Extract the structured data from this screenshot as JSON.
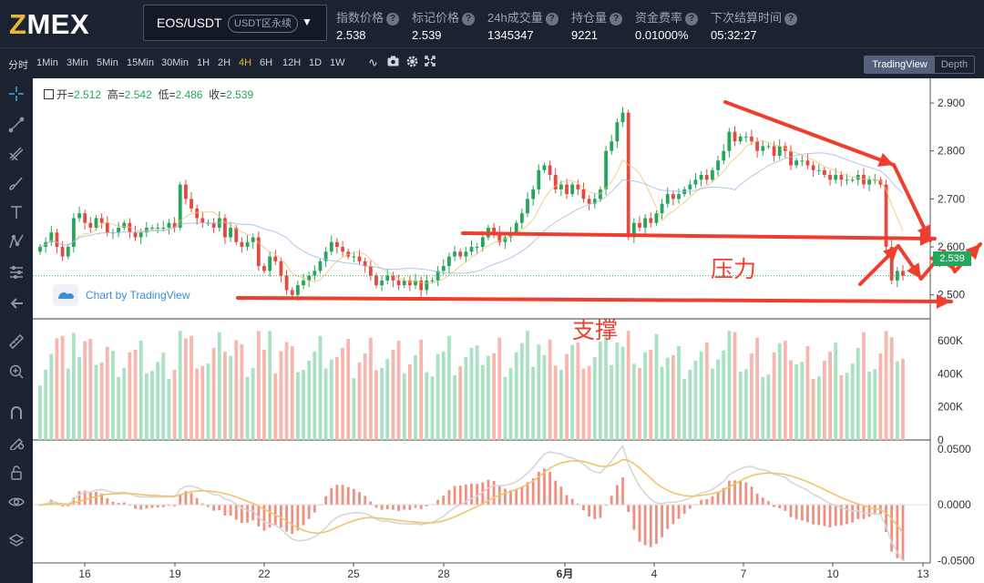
{
  "header": {
    "logo": {
      "z": "Z",
      "rest": "MEX"
    },
    "symbol": {
      "name": "EOS/USDT",
      "badge": "USDT区永续"
    },
    "stats": [
      {
        "label": "指数价格",
        "value": "2.538"
      },
      {
        "label": "标记价格",
        "value": "2.539"
      },
      {
        "label": "24h成交量",
        "value": "1345347"
      },
      {
        "label": "持仓量",
        "value": "9221"
      },
      {
        "label": "资金费率",
        "value": "0.01000%"
      },
      {
        "label": "下次结算时间",
        "value": "05:32:27"
      }
    ],
    "help_glyph": "?"
  },
  "toolbar": {
    "timeframes": [
      "分时",
      "1Min",
      "3Min",
      "5Min",
      "15Min",
      "30Min",
      "1H",
      "2H",
      "4H",
      "6H",
      "12H",
      "1D",
      "1W"
    ],
    "active_timeframe": "4H",
    "tools": [
      "indicator-icon",
      "camera-icon",
      "settings-icon",
      "fullscreen-icon"
    ],
    "views": {
      "tradingview": "TradingView",
      "depth": "Depth"
    }
  },
  "left_tools": [
    "crosshair-icon",
    "trendline-icon",
    "pitchfork-icon",
    "brush-icon",
    "text-icon",
    "pattern-icon",
    "measure-icon",
    "back-arrow-icon",
    "ruler-icon",
    "zoom-icon",
    "magnet-icon",
    "lock-drawing-icon",
    "lock-icon",
    "eye-icon",
    "layers-icon"
  ],
  "legend": {
    "open_label": "开=",
    "open": "2.512",
    "high_label": "高=",
    "high": "2.542",
    "low_label": "低=",
    "low": "2.486",
    "close_label": "收=",
    "close": "2.539"
  },
  "watermark": "Chart by TradingView",
  "annotations": {
    "resistance": "压力",
    "support": "支撑"
  },
  "last_price_tag": "2.539",
  "colors": {
    "up": "#26a65b",
    "down": "#e24b40",
    "up_volume": "#a9e2c2",
    "down_volume": "#f6b7ae",
    "annotation": "#f03e2e",
    "accent": "#e7b736",
    "header_bg": "#1b2230"
  },
  "chart_data": [
    {
      "type": "candlestick",
      "title": "",
      "x_ticks": [
        "16",
        "19",
        "22",
        "25",
        "28",
        "6月",
        "4",
        "7",
        "10",
        "13"
      ],
      "y_ticks": [
        "2.900",
        "2.800",
        "2.700",
        "2.600",
        "2.500"
      ],
      "ylim": [
        2.45,
        2.94
      ],
      "close_series": [
        2.6,
        2.61,
        2.63,
        2.6,
        2.58,
        2.6,
        2.66,
        2.67,
        2.65,
        2.64,
        2.66,
        2.65,
        2.63,
        2.63,
        2.64,
        2.65,
        2.63,
        2.62,
        2.63,
        2.64,
        2.64,
        2.64,
        2.64,
        2.65,
        2.64,
        2.73,
        2.7,
        2.68,
        2.66,
        2.65,
        2.65,
        2.64,
        2.66,
        2.62,
        2.64,
        2.61,
        2.6,
        2.61,
        2.62,
        2.56,
        2.55,
        2.58,
        2.57,
        2.54,
        2.51,
        2.5,
        2.52,
        2.53,
        2.54,
        2.55,
        2.57,
        2.59,
        2.61,
        2.6,
        2.59,
        2.58,
        2.58,
        2.57,
        2.56,
        2.54,
        2.52,
        2.53,
        2.54,
        2.53,
        2.52,
        2.53,
        2.52,
        2.53,
        2.51,
        2.53,
        2.53,
        2.55,
        2.56,
        2.58,
        2.59,
        2.58,
        2.59,
        2.6,
        2.6,
        2.62,
        2.64,
        2.63,
        2.61,
        2.62,
        2.63,
        2.65,
        2.67,
        2.7,
        2.72,
        2.76,
        2.77,
        2.75,
        2.72,
        2.73,
        2.71,
        2.73,
        2.72,
        2.7,
        2.69,
        2.7,
        2.72,
        2.8,
        2.82,
        2.86,
        2.88,
        2.62,
        2.65,
        2.64,
        2.66,
        2.65,
        2.67,
        2.69,
        2.71,
        2.7,
        2.71,
        2.72,
        2.73,
        2.74,
        2.75,
        2.74,
        2.76,
        2.78,
        2.8,
        2.84,
        2.82,
        2.83,
        2.83,
        2.82,
        2.8,
        2.81,
        2.81,
        2.79,
        2.81,
        2.8,
        2.77,
        2.78,
        2.78,
        2.77,
        2.76,
        2.76,
        2.75,
        2.74,
        2.75,
        2.74,
        2.74,
        2.74,
        2.75,
        2.73,
        2.74,
        2.74,
        2.73,
        2.6,
        2.53,
        2.55,
        2.54
      ],
      "legend": {
        "open": 2.512,
        "high": 2.542,
        "low": 2.486,
        "close": 2.539
      }
    },
    {
      "type": "bar",
      "title": "volume",
      "y_ticks": [
        "600K",
        "400K",
        "200K",
        "0"
      ],
      "ylim": [
        0,
        700000
      ]
    },
    {
      "type": "bar",
      "title": "MACD",
      "y_ticks": [
        "0.0500",
        "0.0000",
        "-0.0500"
      ],
      "ylim": [
        -0.052,
        0.058
      ]
    }
  ]
}
